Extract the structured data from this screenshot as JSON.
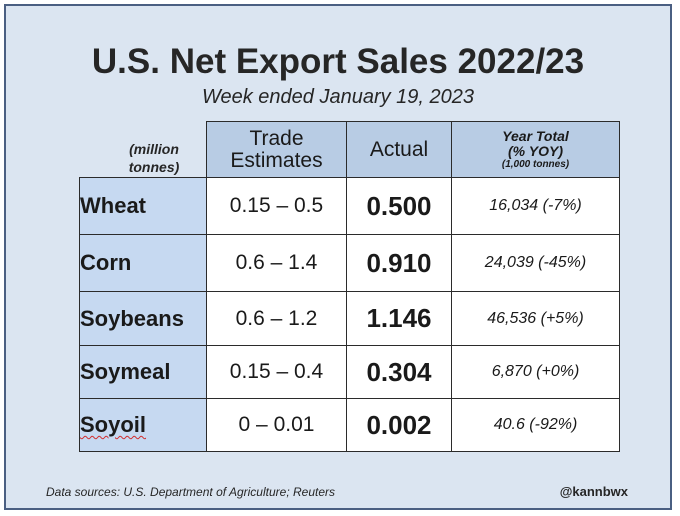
{
  "title": "U.S. Net Export Sales 2022/23",
  "subtitle": "Week ended January 19, 2023",
  "units_label": "(million tonnes)",
  "headers": {
    "trade_estimates": "Trade Estimates",
    "actual": "Actual",
    "year_total_line1": "Year Total",
    "year_total_line2": "(% YOY)",
    "year_total_line3": "(1,000 tonnes)"
  },
  "rows": [
    {
      "commodity": "Wheat",
      "trade_estimates": "0.15 – 0.5",
      "actual": "0.500",
      "year_total": "16,034 (-7%)"
    },
    {
      "commodity": "Corn",
      "trade_estimates": "0.6 – 1.4",
      "actual": "0.910",
      "year_total": "24,039 (-45%)"
    },
    {
      "commodity": "Soybeans",
      "trade_estimates": "0.6 – 1.2",
      "actual": "1.146",
      "year_total": "46,536 (+5%)"
    },
    {
      "commodity": "Soymeal",
      "trade_estimates": "0.15 – 0.4",
      "actual": "0.304",
      "year_total": "6,870 (+0%)"
    },
    {
      "commodity": "Soyoil",
      "trade_estimates": "0 – 0.01",
      "actual": "0.002",
      "year_total": "40.6 (-92%)"
    }
  ],
  "footer": {
    "source": "Data sources: U.S. Department of Agriculture; Reuters",
    "handle": "@kannbwx"
  },
  "colors": {
    "panel_background": "#dbe5f1",
    "header_fill": "#b8cce4",
    "commodity_fill": "#c6d9f1",
    "border": "#4a5f82"
  }
}
